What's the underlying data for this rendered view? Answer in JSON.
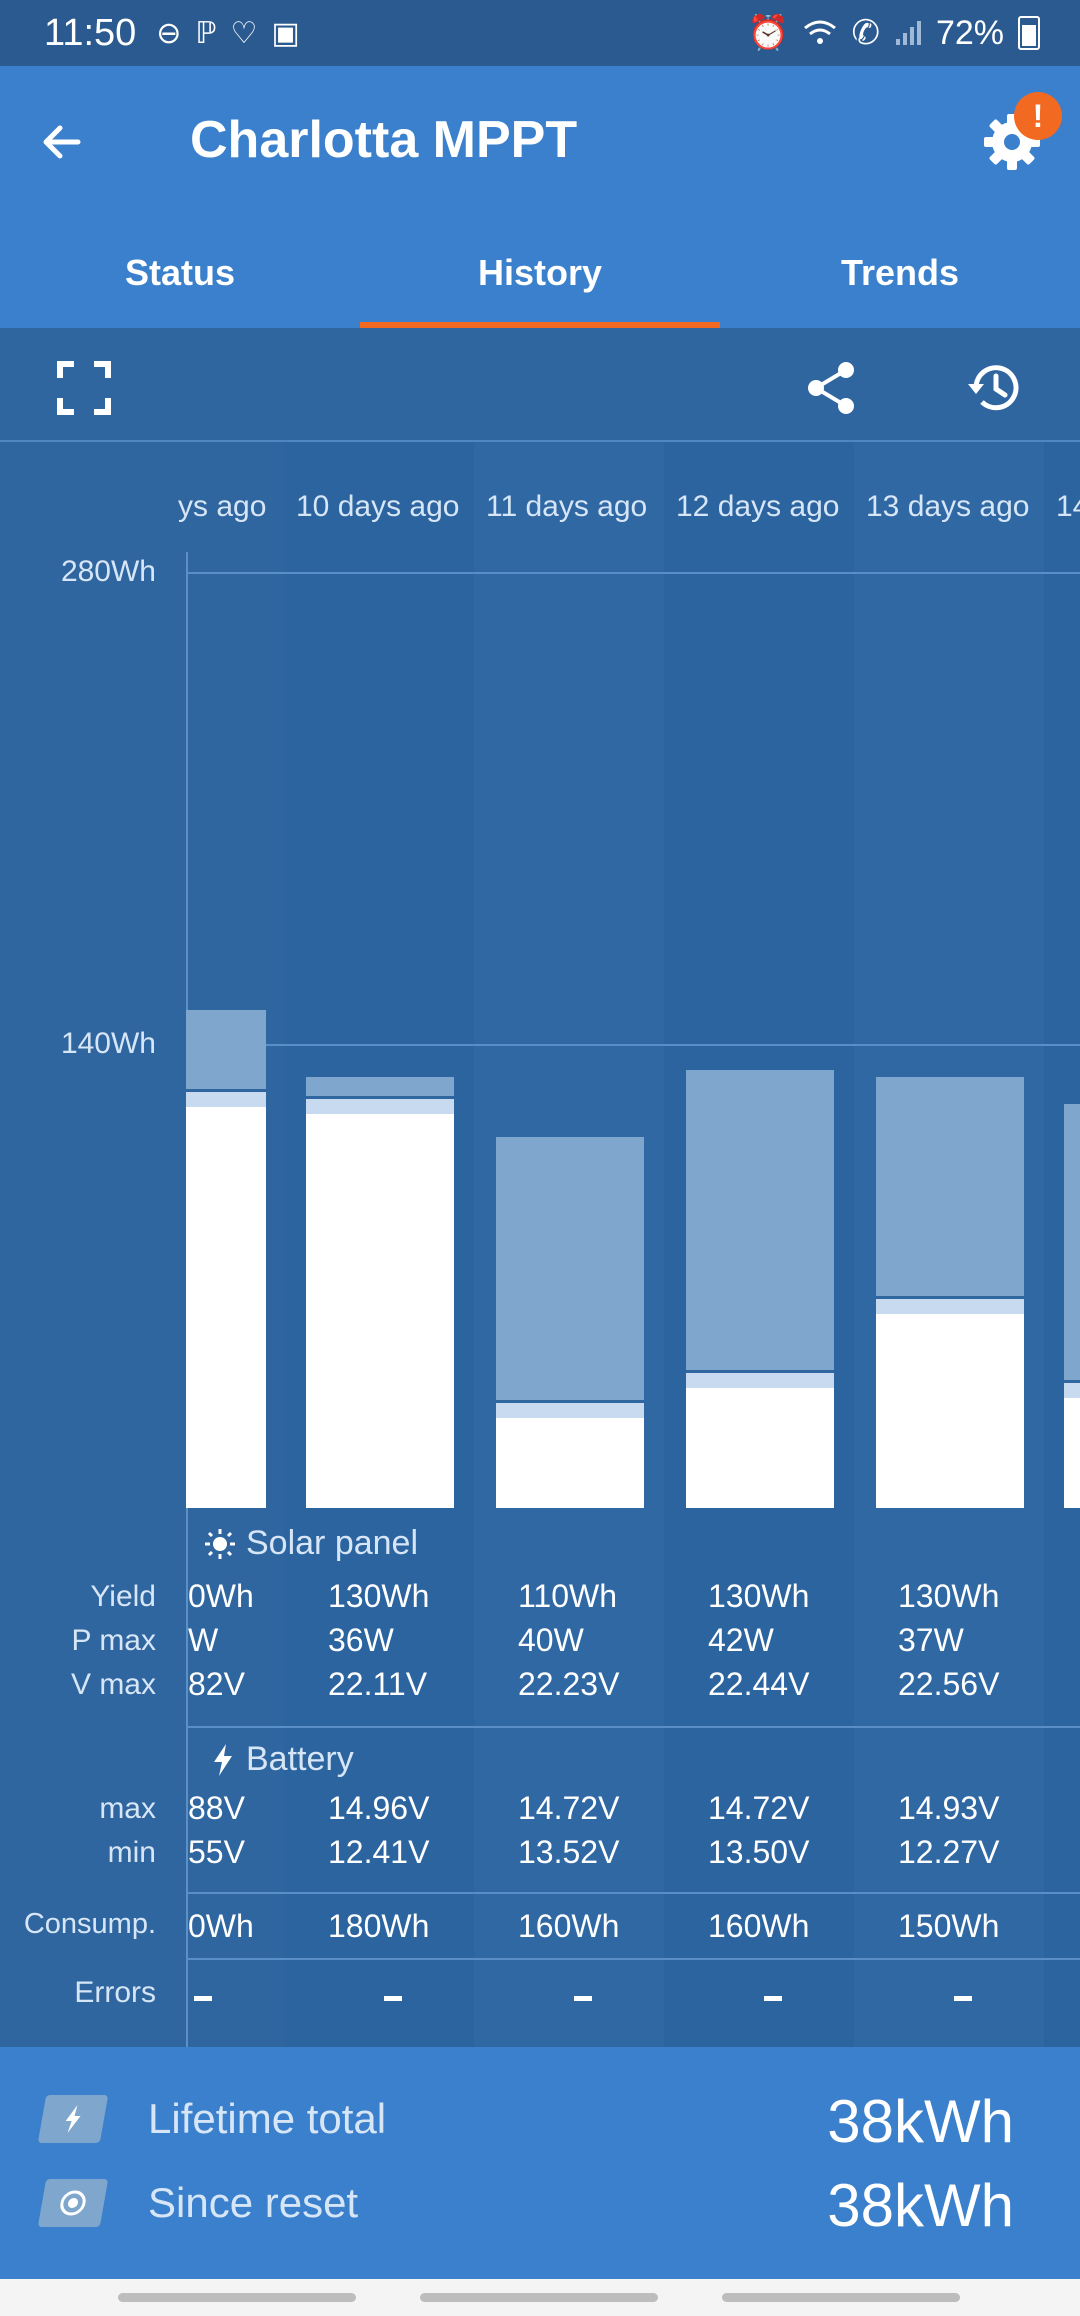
{
  "status_bar": {
    "time": "11:50",
    "left_icons": [
      "do-not-disturb-icon",
      "parking-icon",
      "heart-app-icon",
      "gallery-icon"
    ],
    "right_icons": [
      "alarm-icon",
      "wifi-icon",
      "wifi-calling-icon",
      "signal-icon",
      "battery-icon"
    ],
    "battery": "72%"
  },
  "app_bar": {
    "title": "Charlotta MPPT",
    "alert_badge": "!"
  },
  "tabs": [
    {
      "label": "Status",
      "active": false
    },
    {
      "label": "History",
      "active": true
    },
    {
      "label": "Trends",
      "active": false
    }
  ],
  "toolbar": {
    "icons": [
      "fullscreen-icon",
      "share-icon",
      "history-reset-icon"
    ]
  },
  "chart_data": {
    "type": "bar",
    "categories": [
      "ys ago",
      "10 days ago",
      "11 days ago",
      "12 days ago",
      "13 days ago",
      "14"
    ],
    "y_ticks": [
      "280Wh",
      "140Wh"
    ],
    "ylim": [
      0,
      280
    ],
    "series": [
      {
        "values": [
          120,
          118,
          27,
          36,
          58,
          33
        ]
      },
      {
        "values": [
          149,
          129,
          111,
          131,
          129,
          121
        ]
      }
    ]
  },
  "table": {
    "solar_section_title": "Solar panel",
    "battery_section_title": "Battery",
    "row_labels": {
      "yield": "Yield",
      "pmax": "P max",
      "vmax": "V max",
      "bmax": "max",
      "bmin": "min",
      "consump": "Consump.",
      "errors": "Errors"
    },
    "columns": [
      {
        "yield": "0Wh",
        "pmax": "W",
        "vmax": "82V",
        "bmax": "88V",
        "bmin": "55V",
        "consump": "0Wh"
      },
      {
        "yield": "130Wh",
        "pmax": "36W",
        "vmax": "22.11V",
        "bmax": "14.96V",
        "bmin": "12.41V",
        "consump": "180Wh"
      },
      {
        "yield": "110Wh",
        "pmax": "40W",
        "vmax": "22.23V",
        "bmax": "14.72V",
        "bmin": "13.52V",
        "consump": "160Wh"
      },
      {
        "yield": "130Wh",
        "pmax": "42W",
        "vmax": "22.44V",
        "bmax": "14.72V",
        "bmin": "13.50V",
        "consump": "160Wh"
      },
      {
        "yield": "130Wh",
        "pmax": "37W",
        "vmax": "22.56V",
        "bmax": "14.93V",
        "bmin": "12.27V",
        "consump": "150Wh"
      }
    ]
  },
  "footer": {
    "lifetime_label": "Lifetime total",
    "lifetime_value": "38kWh",
    "reset_label": "Since reset",
    "reset_value": "38kWh"
  },
  "colors": {
    "header_blue": "#3b80cc",
    "chart_bg": "#2f66a0",
    "accent_orange": "#f26a21",
    "consumption_bar": "#7fa6cd",
    "yield_bar": "#ffffff"
  }
}
